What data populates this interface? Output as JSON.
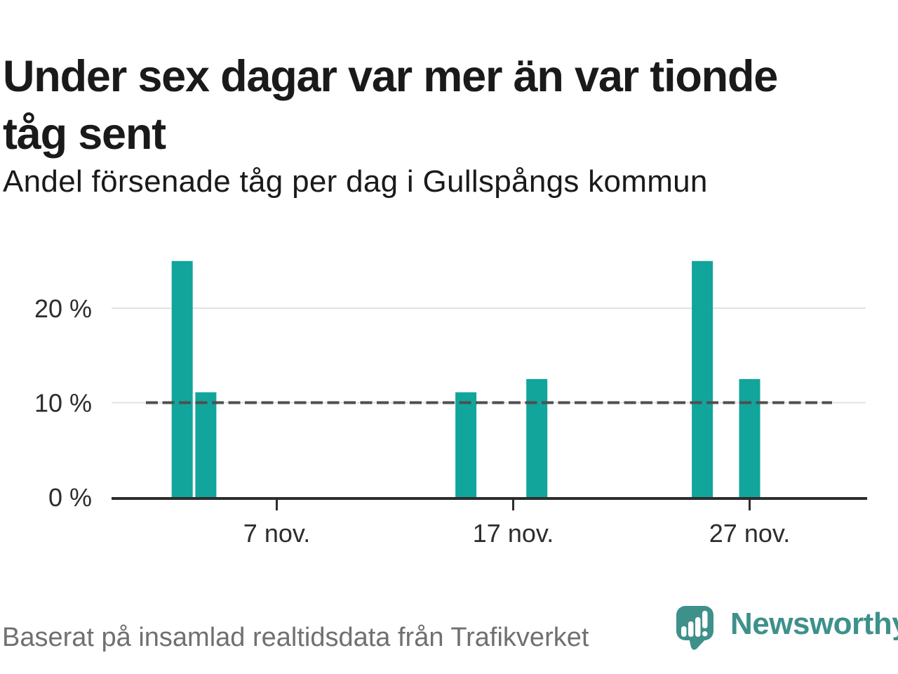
{
  "header": {
    "title": "Under sex dagar var mer än var tionde tåg sent",
    "title_lines": [
      "Under sex dagar var mer än var tionde",
      "tåg sent"
    ],
    "subtitle": "Andel försenade tåg per dag i Gullspångs kommun"
  },
  "footer": {
    "source_note": "Baserat på insamlad realtidsdata från Trafikverket",
    "logo_text": "Newsworthy"
  },
  "colors": {
    "bar": "#11a59c",
    "axis": "#2d2d2d",
    "grid": "#e3e3e3",
    "reference_line": "#4f4f4f",
    "tick_label": "#2d2d2d",
    "title_text": "#1a1a1a",
    "source_text": "#707070",
    "logo": "#3e908b",
    "logo_glyph": "#ffffff"
  },
  "chart_data": {
    "type": "bar",
    "title": "Andel försenade tåg per dag i Gullspångs kommun",
    "x_unit": "dag i november",
    "y_unit": "percent",
    "x": [
      3,
      4,
      15,
      18,
      25,
      27
    ],
    "categories": [
      "3 nov.",
      "4 nov.",
      "15 nov.",
      "18 nov.",
      "25 nov.",
      "27 nov."
    ],
    "values": [
      25,
      11.1,
      11.1,
      12.5,
      25,
      12.5
    ],
    "x_ticks": [
      {
        "day": 7,
        "label": "7 nov."
      },
      {
        "day": 17,
        "label": "17 nov."
      },
      {
        "day": 27,
        "label": "27 nov."
      }
    ],
    "y_ticks": [
      {
        "value": 0,
        "label": "0 %"
      },
      {
        "value": 10,
        "label": "10 %"
      },
      {
        "value": 20,
        "label": "20 %"
      }
    ],
    "reference_line": {
      "value": 10,
      "style": "dashed"
    },
    "ylim": [
      0,
      25
    ],
    "grid": "horizontal",
    "legend": "none"
  }
}
